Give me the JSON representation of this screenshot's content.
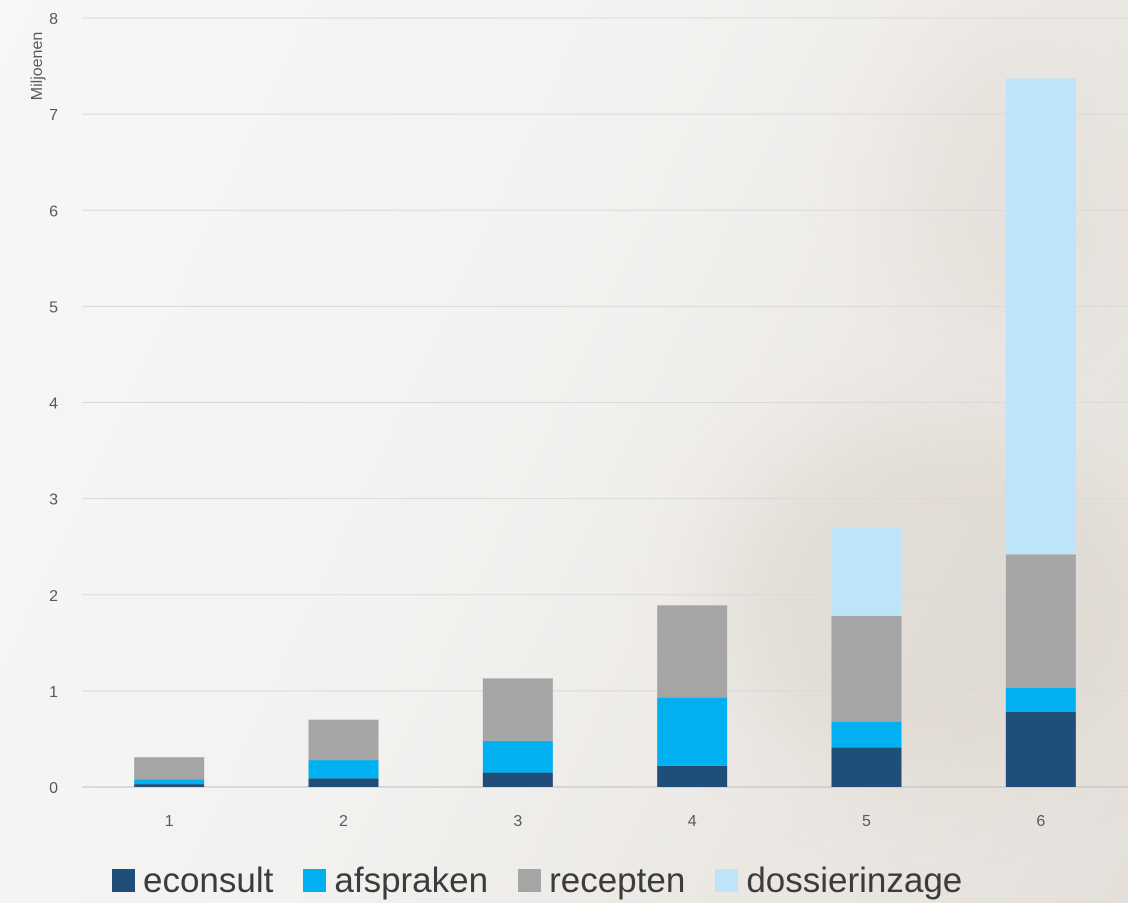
{
  "chart_data": {
    "type": "bar",
    "stacked": true,
    "categories": [
      "1",
      "2",
      "3",
      "4",
      "5",
      "6"
    ],
    "series": [
      {
        "name": "econsult",
        "color": "#1f4e79",
        "values": [
          0.03,
          0.09,
          0.15,
          0.22,
          0.41,
          0.78
        ]
      },
      {
        "name": "afspraken",
        "color": "#00b0f0",
        "values": [
          0.05,
          0.19,
          0.33,
          0.71,
          0.27,
          0.25
        ]
      },
      {
        "name": "recepten",
        "color": "#a5a5a5",
        "values": [
          0.23,
          0.42,
          0.65,
          0.96,
          1.1,
          1.39
        ]
      },
      {
        "name": "dossierinzage",
        "color": "#bde4f8",
        "values": [
          0.0,
          0.0,
          0.0,
          0.0,
          0.92,
          4.95
        ]
      }
    ],
    "title": "",
    "xlabel": "",
    "ylabel": "Miljoenen",
    "ylim": [
      0,
      8
    ],
    "yticks": [
      0,
      1,
      2,
      3,
      4,
      5,
      6,
      7,
      8
    ],
    "grid": true,
    "legend_position": "bottom"
  }
}
